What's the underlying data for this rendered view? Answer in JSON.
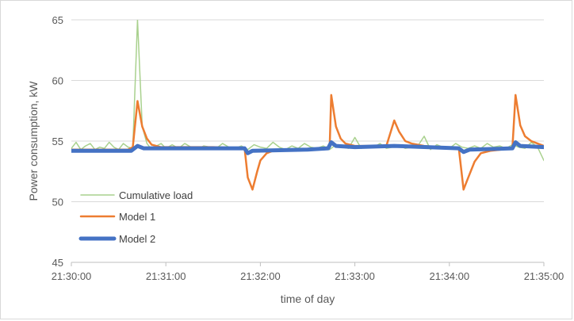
{
  "chart_data": {
    "type": "line",
    "title": "",
    "xlabel": "time of day",
    "ylabel": "Power consumption, kW",
    "ylim": [
      45,
      65
    ],
    "yticks": [
      45,
      50,
      55,
      60,
      65
    ],
    "xlim": [
      "21:30:00",
      "21:35:00"
    ],
    "xticks": [
      "21:30:00",
      "21:31:00",
      "21:32:00",
      "21:33:00",
      "21:34:00",
      "21:35:00"
    ],
    "grid": "horizontal",
    "legend_position": "lower-left inside",
    "series": [
      {
        "name": "Cumulative load",
        "color": "#a9d18e",
        "points": [
          [
            "21:30:00",
            54.4
          ],
          [
            "21:30:03",
            54.9
          ],
          [
            "21:30:06",
            54.3
          ],
          [
            "21:30:09",
            54.6
          ],
          [
            "21:30:12",
            54.8
          ],
          [
            "21:30:15",
            54.3
          ],
          [
            "21:30:18",
            54.5
          ],
          [
            "21:30:21",
            54.4
          ],
          [
            "21:30:24",
            54.9
          ],
          [
            "21:30:27",
            54.5
          ],
          [
            "21:30:30",
            54.3
          ],
          [
            "21:30:33",
            54.8
          ],
          [
            "21:30:36",
            54.5
          ],
          [
            "21:30:39",
            54.4
          ],
          [
            "21:30:42",
            65.0
          ],
          [
            "21:30:45",
            56.2
          ],
          [
            "21:30:48",
            54.8
          ],
          [
            "21:30:51",
            54.3
          ],
          [
            "21:30:54",
            54.6
          ],
          [
            "21:30:57",
            54.8
          ],
          [
            "21:31:00",
            54.4
          ],
          [
            "21:31:04",
            54.7
          ],
          [
            "21:31:08",
            54.4
          ],
          [
            "21:31:12",
            54.8
          ],
          [
            "21:31:16",
            54.5
          ],
          [
            "21:31:20",
            54.3
          ],
          [
            "21:31:24",
            54.6
          ],
          [
            "21:31:28",
            54.5
          ],
          [
            "21:31:32",
            54.4
          ],
          [
            "21:31:36",
            54.8
          ],
          [
            "21:31:40",
            54.5
          ],
          [
            "21:31:44",
            54.4
          ],
          [
            "21:31:48",
            54.6
          ],
          [
            "21:31:52",
            54.3
          ],
          [
            "21:31:56",
            54.7
          ],
          [
            "21:32:00",
            54.5
          ],
          [
            "21:32:04",
            54.4
          ],
          [
            "21:32:08",
            54.9
          ],
          [
            "21:32:12",
            54.5
          ],
          [
            "21:32:16",
            54.3
          ],
          [
            "21:32:20",
            54.6
          ],
          [
            "21:32:24",
            54.4
          ],
          [
            "21:32:28",
            54.8
          ],
          [
            "21:32:32",
            54.5
          ],
          [
            "21:32:36",
            54.4
          ],
          [
            "21:32:40",
            54.6
          ],
          [
            "21:32:44",
            54.3
          ],
          [
            "21:32:48",
            54.7
          ],
          [
            "21:32:52",
            54.5
          ],
          [
            "21:32:56",
            54.4
          ],
          [
            "21:33:00",
            55.3
          ],
          [
            "21:33:04",
            54.4
          ],
          [
            "21:33:08",
            54.6
          ],
          [
            "21:33:12",
            54.5
          ],
          [
            "21:33:16",
            54.8
          ],
          [
            "21:33:20",
            54.4
          ],
          [
            "21:33:24",
            54.5
          ],
          [
            "21:33:28",
            54.7
          ],
          [
            "21:33:32",
            54.4
          ],
          [
            "21:33:36",
            54.5
          ],
          [
            "21:33:40",
            54.6
          ],
          [
            "21:33:44",
            55.4
          ],
          [
            "21:33:48",
            54.3
          ],
          [
            "21:33:52",
            54.7
          ],
          [
            "21:33:56",
            54.5
          ],
          [
            "21:34:00",
            54.4
          ],
          [
            "21:34:04",
            54.8
          ],
          [
            "21:34:08",
            54.5
          ],
          [
            "21:34:12",
            54.4
          ],
          [
            "21:34:16",
            54.6
          ],
          [
            "21:34:20",
            54.4
          ],
          [
            "21:34:24",
            54.8
          ],
          [
            "21:34:28",
            54.5
          ],
          [
            "21:34:32",
            54.6
          ],
          [
            "21:34:36",
            54.4
          ],
          [
            "21:34:40",
            54.7
          ],
          [
            "21:34:44",
            54.5
          ],
          [
            "21:34:48",
            54.4
          ],
          [
            "21:34:52",
            54.9
          ],
          [
            "21:34:56",
            54.5
          ],
          [
            "21:35:00",
            53.4
          ]
        ]
      },
      {
        "name": "Model 1",
        "color": "#ed7d31",
        "points": [
          [
            "21:30:00",
            54.3
          ],
          [
            "21:30:36",
            54.3
          ],
          [
            "21:30:39",
            54.5
          ],
          [
            "21:30:42",
            58.3
          ],
          [
            "21:30:45",
            56.2
          ],
          [
            "21:30:48",
            55.2
          ],
          [
            "21:30:51",
            54.7
          ],
          [
            "21:30:57",
            54.5
          ],
          [
            "21:31:30",
            54.5
          ],
          [
            "21:31:50",
            54.4
          ],
          [
            "21:31:52",
            52.0
          ],
          [
            "21:31:55",
            51.0
          ],
          [
            "21:31:58",
            52.5
          ],
          [
            "21:32:00",
            53.4
          ],
          [
            "21:32:04",
            54.0
          ],
          [
            "21:32:10",
            54.3
          ],
          [
            "21:32:40",
            54.3
          ],
          [
            "21:32:44",
            54.5
          ],
          [
            "21:32:45",
            58.8
          ],
          [
            "21:32:48",
            56.2
          ],
          [
            "21:32:51",
            55.2
          ],
          [
            "21:32:54",
            54.8
          ],
          [
            "21:33:00",
            54.6
          ],
          [
            "21:33:20",
            54.6
          ],
          [
            "21:33:25",
            56.7
          ],
          [
            "21:33:28",
            55.8
          ],
          [
            "21:33:32",
            55.0
          ],
          [
            "21:33:36",
            54.8
          ],
          [
            "21:33:44",
            54.6
          ],
          [
            "21:34:00",
            54.4
          ],
          [
            "21:34:06",
            54.4
          ],
          [
            "21:34:09",
            51.0
          ],
          [
            "21:34:12",
            52.0
          ],
          [
            "21:34:16",
            53.3
          ],
          [
            "21:34:20",
            54.0
          ],
          [
            "21:34:26",
            54.2
          ],
          [
            "21:34:40",
            54.4
          ],
          [
            "21:34:42",
            58.8
          ],
          [
            "21:34:45",
            56.3
          ],
          [
            "21:34:48",
            55.4
          ],
          [
            "21:34:52",
            55.0
          ],
          [
            "21:34:56",
            54.8
          ],
          [
            "21:35:00",
            54.6
          ]
        ]
      },
      {
        "name": "Model 2",
        "color": "#4472c4",
        "points": [
          [
            "21:30:00",
            54.2
          ],
          [
            "21:30:38",
            54.2
          ],
          [
            "21:30:42",
            54.6
          ],
          [
            "21:30:46",
            54.4
          ],
          [
            "21:31:50",
            54.4
          ],
          [
            "21:31:52",
            54.0
          ],
          [
            "21:31:55",
            54.2
          ],
          [
            "21:32:30",
            54.3
          ],
          [
            "21:32:43",
            54.4
          ],
          [
            "21:32:45",
            54.9
          ],
          [
            "21:32:48",
            54.6
          ],
          [
            "21:33:00",
            54.5
          ],
          [
            "21:33:25",
            54.6
          ],
          [
            "21:34:06",
            54.4
          ],
          [
            "21:34:09",
            54.1
          ],
          [
            "21:34:13",
            54.3
          ],
          [
            "21:34:40",
            54.4
          ],
          [
            "21:34:42",
            54.9
          ],
          [
            "21:34:45",
            54.6
          ],
          [
            "21:35:00",
            54.5
          ]
        ]
      }
    ]
  }
}
